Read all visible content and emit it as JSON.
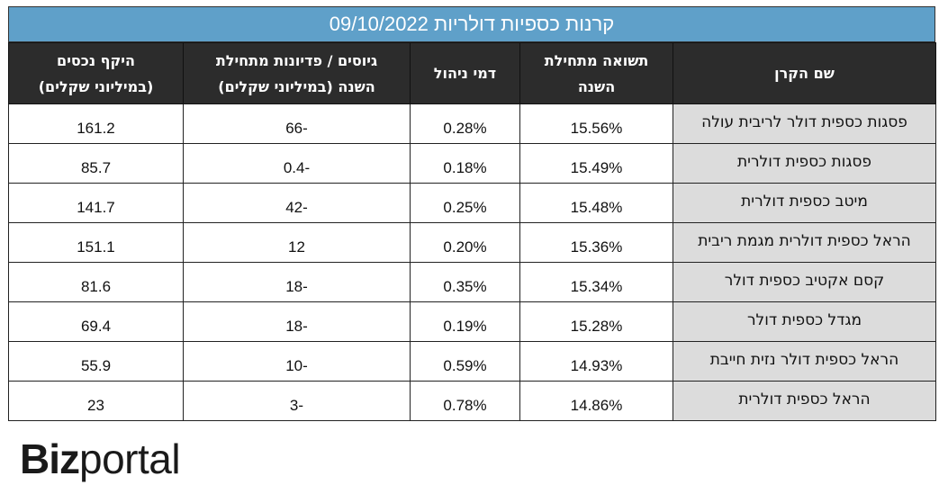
{
  "title": "קרנות כספיות דולריות 09/10/2022",
  "headers": {
    "fund_name": "שם הקרן",
    "ytd_return_line1": "תשואה מתחילת",
    "ytd_return_line2": "השנה",
    "mgmt_fee": "דמי ניהול",
    "flows_line1": "גיוסים / פדיונות מתחילת",
    "flows_line2": "השנה (במיליוני שקלים)",
    "aum_line1": "היקף נכסים",
    "aum_line2": "(במיליוני שקלים)"
  },
  "rows": [
    {
      "name": "פסגות כספית דולר לריבית עולה",
      "ytd_return": "15.56%",
      "fee": "0.28%",
      "flows": "-66",
      "aum": "161.2"
    },
    {
      "name": "פסגות כספית דולרית",
      "ytd_return": "15.49%",
      "fee": "0.18%",
      "flows": "-0.4",
      "aum": "85.7"
    },
    {
      "name": "מיטב כספית דולרית",
      "ytd_return": "15.48%",
      "fee": "0.25%",
      "flows": "-42",
      "aum": "141.7"
    },
    {
      "name": "הראל כספית דולרית מגמת ריבית",
      "ytd_return": "15.36%",
      "fee": "0.20%",
      "flows": "12",
      "aum": "151.1"
    },
    {
      "name": "קסם אקטיב כספית דולר",
      "ytd_return": "15.34%",
      "fee": "0.35%",
      "flows": "-18",
      "aum": "81.6"
    },
    {
      "name": "מגדל כספית דולר",
      "ytd_return": "15.28%",
      "fee": "0.19%",
      "flows": "-18",
      "aum": "69.4"
    },
    {
      "name": "הראל כספית דולר נזית חייבת",
      "ytd_return": "14.93%",
      "fee": "0.59%",
      "flows": "-10",
      "aum": "55.9"
    },
    {
      "name": "הראל כספית דולרית",
      "ytd_return": "14.86%",
      "fee": "0.78%",
      "flows": "-3",
      "aum": "23"
    }
  ],
  "logo": {
    "part1": "Biz",
    "part2": "portal"
  },
  "colors": {
    "title_bg": "#5fa0c9",
    "header_bg": "#2c2c2c",
    "name_cell_bg": "#dcdcdc"
  }
}
